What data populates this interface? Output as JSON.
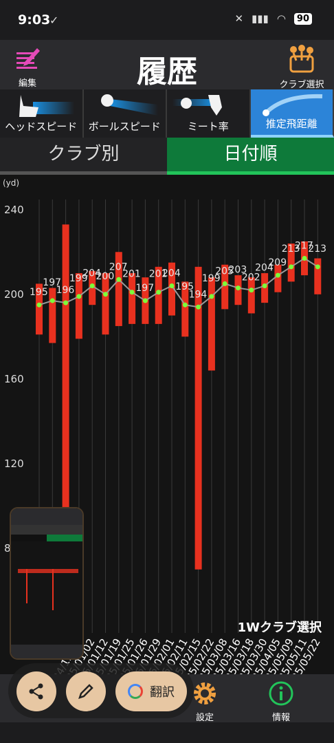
{
  "status": {
    "time": "9:03",
    "battery": "90"
  },
  "header": {
    "title": "履歴",
    "edit_label": "編集",
    "club_select_label": "クラブ選択"
  },
  "metric_tabs": [
    {
      "label": "ヘッドスピード",
      "active": false
    },
    {
      "label": "ボールスピード",
      "active": false
    },
    {
      "label": "ミート率",
      "active": false
    },
    {
      "label": "推定飛距離",
      "active": true
    }
  ],
  "sort_tabs": [
    {
      "label": "クラブ別",
      "active": false
    },
    {
      "label": "日付順",
      "active": true
    }
  ],
  "chart_data": {
    "type": "candlestick-line",
    "unit_label": "(yd)",
    "ylim": [
      40,
      250
    ],
    "y_ticks": [
      240,
      200,
      160,
      120,
      80
    ],
    "x_labels": [
      "",
      "",
      "",
      "24/12/26",
      "25/01/02",
      "25/01/12",
      "25/01/19",
      "25/01/25",
      "25/01/26",
      "25/01/29",
      "25/02/01",
      "25/02/11",
      "25/02/15",
      "25/02/22",
      "25/03/08",
      "25/03/16",
      "25/03/18",
      "25/03/30",
      "25/04/05",
      "25/05/09",
      "25/05/11",
      "25/05/22"
    ],
    "avg": [
      195,
      197,
      196,
      199,
      204,
      200,
      207,
      201,
      197,
      201,
      204,
      195,
      194,
      199,
      205,
      203,
      202,
      204,
      209,
      213,
      217,
      213
    ],
    "avg_labels": [
      "195",
      "197",
      "196",
      "199",
      "204",
      "200",
      "207",
      "201",
      "197",
      "201",
      "204",
      "195",
      "194",
      "199",
      "205",
      "203",
      "202",
      "204",
      "209",
      "213",
      "217",
      "213"
    ],
    "high": [
      205,
      203,
      233,
      210,
      211,
      210,
      220,
      210,
      208,
      213,
      215,
      206,
      213,
      208,
      214,
      209,
      208,
      210,
      214,
      224,
      225,
      217
    ],
    "low": [
      181,
      177,
      80,
      179,
      195,
      181,
      185,
      186,
      186,
      186,
      190,
      180,
      70,
      164,
      193,
      195,
      191,
      196,
      201,
      206,
      209,
      200
    ]
  },
  "caption": "1Wクラブ選択",
  "bottom_nav": {
    "settings_label": "設定",
    "info_label": "情報"
  },
  "float_actions": {
    "translate_label": "翻訳"
  },
  "colors": {
    "bar": "#e8311f",
    "line": "#9a9a9a",
    "dot": "#7cff3a",
    "active_tab": "#2c84d8",
    "active_sort": "#0e7a3a"
  }
}
